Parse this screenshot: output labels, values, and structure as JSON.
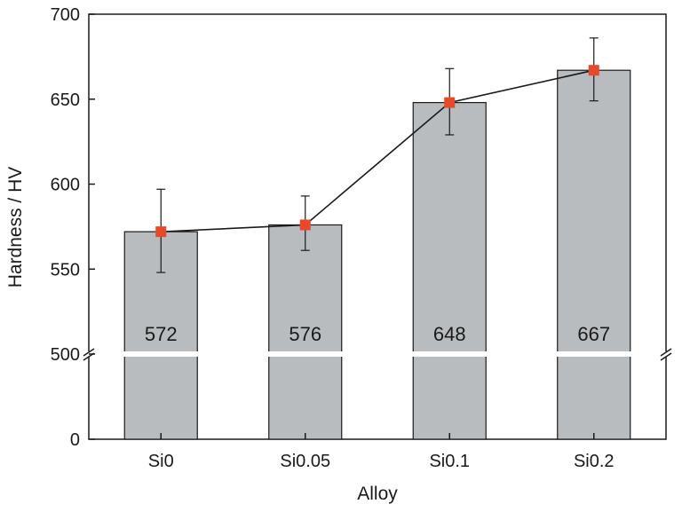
{
  "chart_data": {
    "type": "bar",
    "title": "",
    "xlabel": "Alloy",
    "ylabel": "Hardness / HV",
    "categories": [
      "Si0",
      "Si0.05",
      "Si0.1",
      "Si0.2"
    ],
    "values": [
      572,
      576,
      648,
      667
    ],
    "value_labels": [
      "572",
      "576",
      "648",
      "667"
    ],
    "error_upper": [
      597,
      593,
      668,
      686
    ],
    "error_lower": [
      548,
      561,
      629,
      649
    ],
    "y_axis_break": {
      "lower_range": [
        0,
        500
      ],
      "upper_range": [
        500,
        700
      ]
    },
    "ylim": [
      0,
      700
    ],
    "y_ticks": [
      0,
      500,
      550,
      600,
      650,
      700
    ],
    "y_tick_labels": [
      "0",
      "500",
      "550",
      "600",
      "650",
      "700"
    ],
    "line_overlay": {
      "marker": "square",
      "color": "#e8492a"
    },
    "bar_color": "#b8bcbf",
    "grid": false,
    "legend": "none"
  }
}
